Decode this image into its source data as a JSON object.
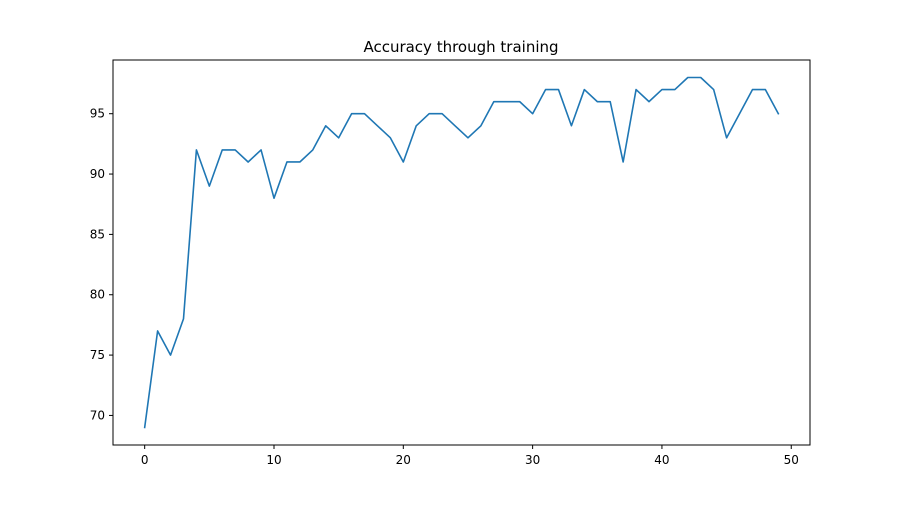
{
  "chart_data": {
    "type": "line",
    "title": "Accuracy through training",
    "xlabel": "",
    "ylabel": "",
    "xlim": [
      -2.45,
      51.45
    ],
    "ylim": [
      67.55,
      99.45
    ],
    "xticks": [
      0,
      10,
      20,
      30,
      40,
      50
    ],
    "yticks": [
      70,
      75,
      80,
      85,
      90,
      95
    ],
    "grid": false,
    "line_color": "#1f77b4",
    "series": [
      {
        "x": [
          0,
          1,
          2,
          3,
          4,
          5,
          6,
          7,
          8,
          9,
          10,
          11,
          12,
          13,
          14,
          15,
          16,
          17,
          18,
          19,
          20,
          21,
          22,
          23,
          24,
          25,
          26,
          27,
          28,
          29,
          30,
          31,
          32,
          33,
          34,
          35,
          36,
          37,
          38,
          39,
          40,
          41,
          42,
          43,
          44,
          45,
          46,
          47,
          48,
          49
        ],
        "values": [
          69,
          77,
          75,
          78,
          92,
          89,
          92,
          92,
          91,
          92,
          88,
          91,
          91,
          92,
          94,
          93,
          95,
          95,
          94,
          93,
          91,
          94,
          95,
          95,
          94,
          93,
          94,
          96,
          96,
          96,
          95,
          97,
          97,
          94,
          97,
          96,
          96,
          91,
          97,
          96,
          97,
          97,
          98,
          98,
          97,
          93,
          95,
          97,
          97,
          95
        ]
      }
    ]
  }
}
